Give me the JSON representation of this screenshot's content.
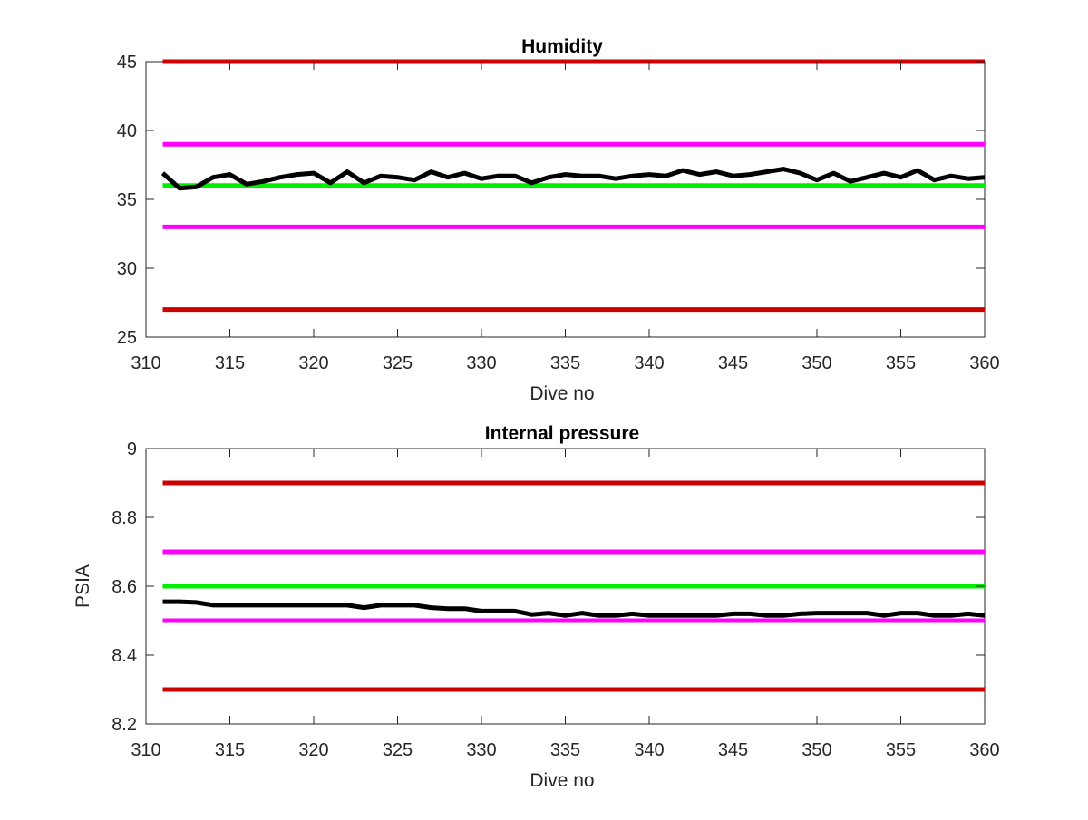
{
  "chart_data": [
    {
      "type": "line",
      "title": "Humidity",
      "xlabel": "Dive no",
      "ylabel": "",
      "xlim": [
        310,
        360
      ],
      "ylim": [
        25,
        45
      ],
      "xticks": [
        "310",
        "315",
        "320",
        "325",
        "330",
        "335",
        "340",
        "345",
        "350",
        "355",
        "360"
      ],
      "yticks": [
        "25",
        "30",
        "35",
        "40",
        "45"
      ],
      "grid": false,
      "thresholds": [
        {
          "value": 45,
          "color": "#cc0000"
        },
        {
          "value": 39,
          "color": "#ff00ff"
        },
        {
          "value": 36,
          "color": "#00ee00"
        },
        {
          "value": 33,
          "color": "#ff00ff"
        },
        {
          "value": 27,
          "color": "#cc0000"
        }
      ],
      "series": [
        {
          "color": "#000000",
          "x": [
            311,
            312,
            313,
            314,
            315,
            316,
            317,
            318,
            319,
            320,
            321,
            322,
            323,
            324,
            325,
            326,
            327,
            328,
            329,
            330,
            331,
            332,
            333,
            334,
            335,
            336,
            337,
            338,
            339,
            340,
            341,
            342,
            343,
            344,
            345,
            346,
            347,
            348,
            349,
            350,
            351,
            352,
            353,
            354,
            355,
            356,
            357,
            358,
            359,
            360
          ],
          "values": [
            36.9,
            35.8,
            35.9,
            36.6,
            36.8,
            36.1,
            36.3,
            36.6,
            36.8,
            36.9,
            36.2,
            37.0,
            36.2,
            36.7,
            36.6,
            36.4,
            37.0,
            36.6,
            36.9,
            36.5,
            36.7,
            36.7,
            36.2,
            36.6,
            36.8,
            36.7,
            36.7,
            36.5,
            36.7,
            36.8,
            36.7,
            37.1,
            36.8,
            37.0,
            36.7,
            36.8,
            37.0,
            37.2,
            36.9,
            36.4,
            36.9,
            36.3,
            36.6,
            36.9,
            36.6,
            37.1,
            36.4,
            36.7,
            36.5,
            36.6
          ]
        }
      ]
    },
    {
      "type": "line",
      "title": "Internal pressure",
      "xlabel": "Dive no",
      "ylabel": "PSIA",
      "xlim": [
        310,
        360
      ],
      "ylim": [
        8.2,
        9.0
      ],
      "xticks": [
        "310",
        "315",
        "320",
        "325",
        "330",
        "335",
        "340",
        "345",
        "350",
        "355",
        "360"
      ],
      "yticks": [
        "8.2",
        "8.4",
        "8.6",
        "8.8",
        "9"
      ],
      "grid": false,
      "thresholds": [
        {
          "value": 8.9,
          "color": "#cc0000"
        },
        {
          "value": 8.7,
          "color": "#ff00ff"
        },
        {
          "value": 8.6,
          "color": "#00ee00"
        },
        {
          "value": 8.5,
          "color": "#ff00ff"
        },
        {
          "value": 8.3,
          "color": "#cc0000"
        }
      ],
      "series": [
        {
          "color": "#000000",
          "x": [
            311,
            312,
            313,
            314,
            315,
            316,
            317,
            318,
            319,
            320,
            321,
            322,
            323,
            324,
            325,
            326,
            327,
            328,
            329,
            330,
            331,
            332,
            333,
            334,
            335,
            336,
            337,
            338,
            339,
            340,
            341,
            342,
            343,
            344,
            345,
            346,
            347,
            348,
            349,
            350,
            351,
            352,
            353,
            354,
            355,
            356,
            357,
            358,
            359,
            360
          ],
          "values": [
            8.555,
            8.555,
            8.553,
            8.545,
            8.545,
            8.545,
            8.545,
            8.545,
            8.545,
            8.545,
            8.545,
            8.545,
            8.538,
            8.545,
            8.545,
            8.545,
            8.538,
            8.535,
            8.535,
            8.528,
            8.528,
            8.528,
            8.518,
            8.522,
            8.515,
            8.522,
            8.515,
            8.515,
            8.52,
            8.515,
            8.515,
            8.515,
            8.515,
            8.515,
            8.52,
            8.52,
            8.515,
            8.515,
            8.52,
            8.522,
            8.522,
            8.522,
            8.522,
            8.515,
            8.522,
            8.522,
            8.515,
            8.515,
            8.52,
            8.515
          ]
        }
      ]
    }
  ]
}
